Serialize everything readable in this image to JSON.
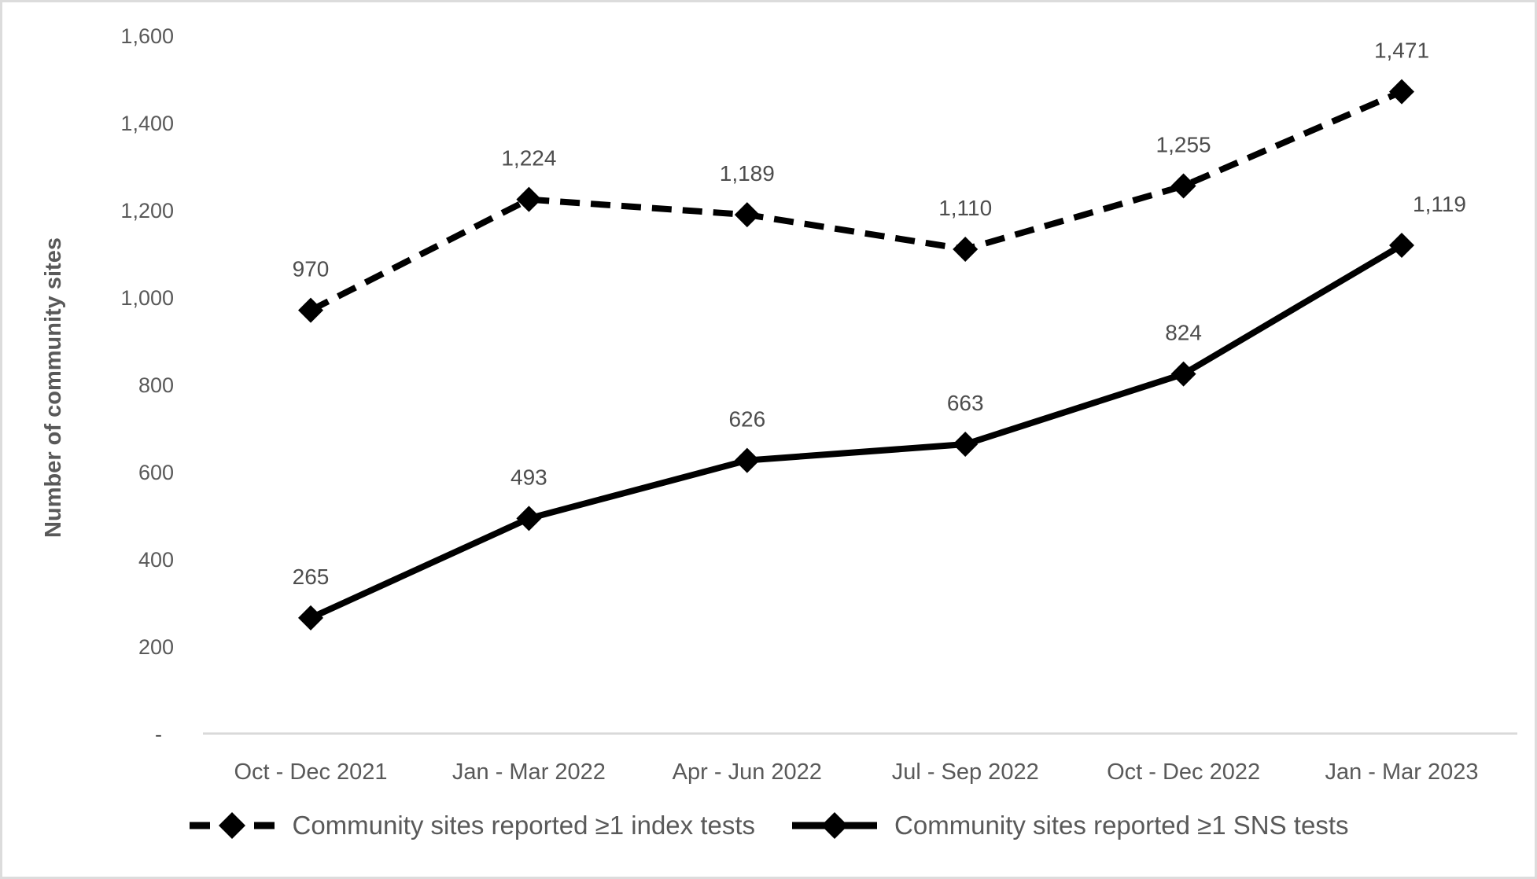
{
  "chart_data": {
    "type": "line",
    "ylabel": "Number of community sites",
    "categories": [
      "Oct - Dec 2021",
      "Jan - Mar 2022",
      "Apr - Jun 2022",
      "Jul - Sep 2022",
      "Oct - Dec 2022",
      "Jan - Mar 2023"
    ],
    "series": [
      {
        "name": "Community sites reported ≥1 index tests",
        "values": [
          970,
          1224,
          1189,
          1110,
          1255,
          1471
        ],
        "labels": [
          "970",
          "1,224",
          "1,189",
          "1,110",
          "1,255",
          "1,471"
        ],
        "label_dx": [
          0,
          0,
          0,
          0,
          0,
          0
        ],
        "line_style": "dashed",
        "marker": "diamond",
        "color": "#000000"
      },
      {
        "name": "Community sites reported ≥1 SNS tests",
        "values": [
          265,
          493,
          626,
          663,
          824,
          1119
        ],
        "labels": [
          "265",
          "493",
          "626",
          "663",
          "824",
          "1,119"
        ],
        "label_dx": [
          0,
          0,
          0,
          0,
          0,
          48
        ],
        "line_style": "solid",
        "marker": "diamond",
        "color": "#000000"
      }
    ],
    "y_axis": {
      "min": 0,
      "max": 1600,
      "step": 200,
      "tick_labels": [
        "-",
        "200",
        "400",
        "600",
        "800",
        "1,000",
        "1,200",
        "1,400",
        "1,600"
      ]
    },
    "grid": false,
    "legend_position": "bottom",
    "colors": {
      "text": "#595959",
      "data_label": "#4d4d4d",
      "axis_line": "#d9d9d9",
      "background": "#ffffff"
    }
  }
}
